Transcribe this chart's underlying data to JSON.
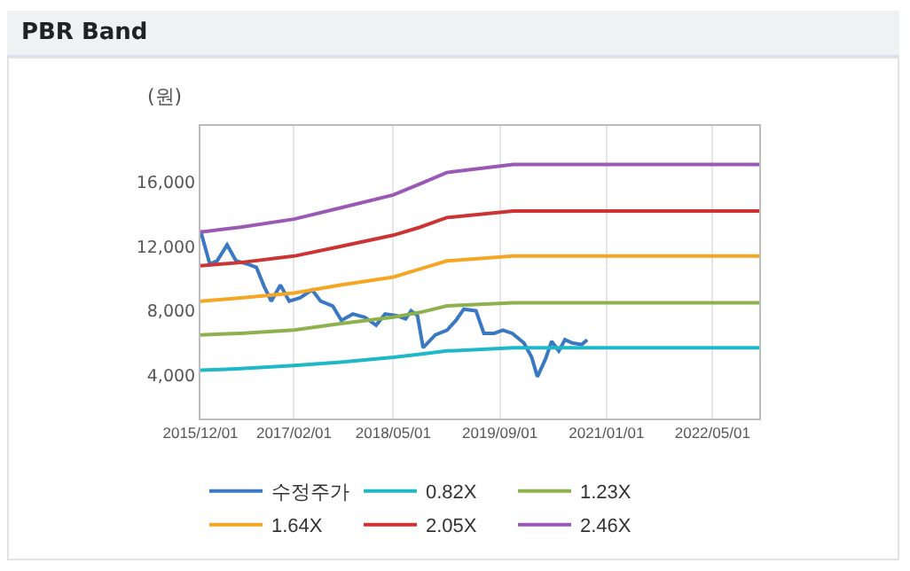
{
  "chart_data": {
    "type": "line",
    "title": "PBR Band",
    "ylabel": "(원)",
    "xlim": [
      "2015-12-01",
      "2022-12-01"
    ],
    "xticks": [
      {
        "value": "2015-12-01",
        "label": "2015/12/01"
      },
      {
        "value": "2017-02-01",
        "label": "2017/02/01"
      },
      {
        "value": "2018-05-01",
        "label": "2018/05/01"
      },
      {
        "value": "2019-09-01",
        "label": "2019/09/01"
      },
      {
        "value": "2021-01-01",
        "label": "2021/01/01"
      },
      {
        "value": "2022-05-01",
        "label": "2022/05/01"
      }
    ],
    "ylim": [
      1300,
      19500
    ],
    "yticks": [
      {
        "value": 4000,
        "label": "4,000"
      },
      {
        "value": 8000,
        "label": "8,000"
      },
      {
        "value": 12000,
        "label": "12,000"
      },
      {
        "value": 16000,
        "label": "16,000"
      }
    ],
    "grid": "x",
    "legend": "bottom",
    "marker": "none",
    "line_style": "solid",
    "series": [
      {
        "name": "수정주가",
        "color": "#3a78c3",
        "x": [
          "2015-12-01",
          "2016-01-13",
          "2016-02-15",
          "2016-04-01",
          "2016-05-12",
          "2016-07-04",
          "2016-08-13",
          "2016-09-18",
          "2016-10-20",
          "2016-12-01",
          "2017-01-10",
          "2017-03-01",
          "2017-04-25",
          "2017-06-03",
          "2017-07-28",
          "2017-09-06",
          "2017-10-28",
          "2017-12-22",
          "2018-02-12",
          "2018-03-25",
          "2018-05-15",
          "2018-06-27",
          "2018-07-22",
          "2018-08-20",
          "2018-09-15",
          "2018-11-10",
          "2019-01-03",
          "2019-02-12",
          "2019-03-20",
          "2019-05-15",
          "2019-06-20",
          "2019-08-06",
          "2019-09-15",
          "2019-10-28",
          "2019-12-20",
          "2020-01-25",
          "2020-02-20",
          "2020-03-28",
          "2020-04-25",
          "2020-05-28",
          "2020-06-25",
          "2020-07-28",
          "2020-09-10",
          "2020-10-05"
        ],
        "values": [
          13000,
          10900,
          11100,
          12100,
          11100,
          10900,
          10700,
          9500,
          8600,
          9600,
          8600,
          8800,
          9300,
          8600,
          8300,
          7400,
          7800,
          7600,
          7100,
          7800,
          7700,
          7500,
          8000,
          7700,
          5700,
          6500,
          6800,
          7400,
          8100,
          8000,
          6600,
          6600,
          6800,
          6600,
          6000,
          5100,
          3900,
          5000,
          6100,
          5500,
          6200,
          6000,
          5900,
          6200
        ]
      },
      {
        "name": "0.82X",
        "color": "#1fb8c9",
        "x": [
          "2015-12-01",
          "2016-06-01",
          "2017-02-01",
          "2017-09-01",
          "2018-05-01",
          "2018-09-01",
          "2019-01-01",
          "2019-11-01",
          "2022-12-01"
        ],
        "values": [
          4300,
          4400,
          4600,
          4800,
          5100,
          5300,
          5500,
          5700,
          5700
        ]
      },
      {
        "name": "1.23X",
        "color": "#8db14d",
        "x": [
          "2015-12-01",
          "2016-06-01",
          "2017-02-01",
          "2017-09-01",
          "2018-05-01",
          "2018-09-01",
          "2019-01-01",
          "2019-11-01",
          "2022-12-01"
        ],
        "values": [
          6500,
          6600,
          6800,
          7200,
          7600,
          7900,
          8300,
          8500,
          8500
        ]
      },
      {
        "name": "1.64X",
        "color": "#f5a623",
        "x": [
          "2015-12-01",
          "2016-06-01",
          "2017-02-01",
          "2017-09-01",
          "2018-05-01",
          "2018-09-01",
          "2019-01-01",
          "2019-11-01",
          "2022-12-01"
        ],
        "values": [
          8600,
          8800,
          9100,
          9600,
          10100,
          10600,
          11100,
          11400,
          11400
        ]
      },
      {
        "name": "2.05X",
        "color": "#cc3333",
        "x": [
          "2015-12-01",
          "2016-06-01",
          "2017-02-01",
          "2017-09-01",
          "2018-05-01",
          "2018-09-01",
          "2019-01-01",
          "2019-11-01",
          "2022-12-01"
        ],
        "values": [
          10800,
          11000,
          11400,
          12000,
          12700,
          13200,
          13800,
          14200,
          14200
        ]
      },
      {
        "name": "2.46X",
        "color": "#9b59b6",
        "x": [
          "2015-12-01",
          "2016-06-01",
          "2017-02-01",
          "2017-09-01",
          "2018-05-01",
          "2018-09-01",
          "2019-01-01",
          "2019-11-01",
          "2022-12-01"
        ],
        "values": [
          12900,
          13200,
          13700,
          14400,
          15200,
          15900,
          16600,
          17100,
          17100
        ]
      }
    ]
  }
}
